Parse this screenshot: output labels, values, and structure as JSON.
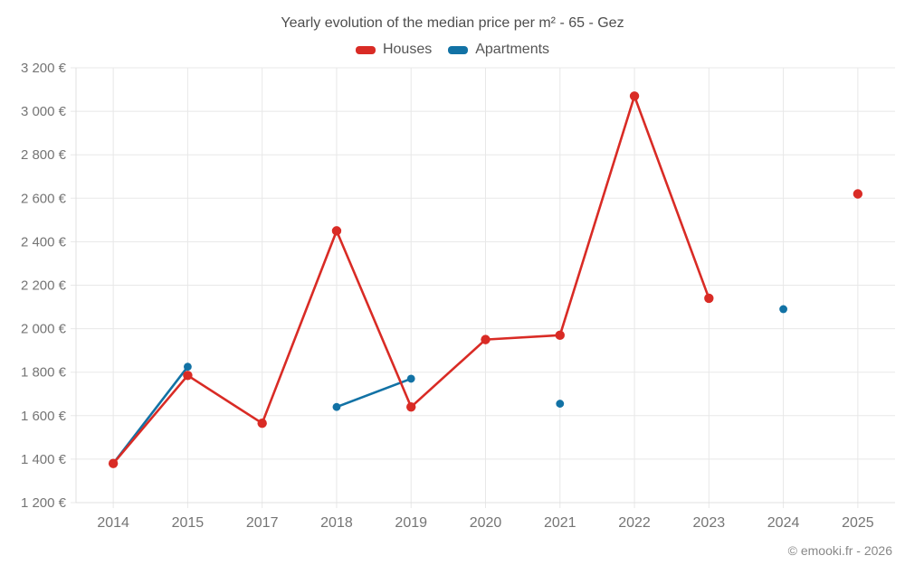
{
  "footer": {
    "credit": "© emooki.fr - 2026"
  },
  "colors": {
    "houses": "#d92b25",
    "apartments": "#1272a5",
    "grid": "#e8e8e8",
    "axis_line": "#e0e0e0",
    "tick_text": "#757575",
    "title_text": "#4d4d4d",
    "legend_text": "#555555",
    "credit_text": "#888888",
    "background": "#ffffff"
  },
  "chart_data": {
    "type": "line",
    "title": "Yearly evolution of the median price per m² - 65 - Gez",
    "categories": [
      "2014",
      "2015",
      "2017",
      "2018",
      "2019",
      "2020",
      "2021",
      "2022",
      "2023",
      "2024",
      "2025"
    ],
    "series": [
      {
        "name": "Houses",
        "color": "#d92b25",
        "values": [
          1380,
          1785,
          1565,
          2450,
          1640,
          1950,
          1970,
          3070,
          2140,
          null,
          2620
        ]
      },
      {
        "name": "Apartments",
        "color": "#1272a5",
        "values": [
          1380,
          1825,
          null,
          1640,
          1770,
          null,
          1655,
          null,
          null,
          2090,
          null
        ]
      }
    ],
    "xlabel": "",
    "ylabel": "",
    "ylim": [
      1200,
      3200
    ],
    "y_tick_step": 200,
    "y_tick_labels": [
      "1 200 €",
      "1 400 €",
      "1 600 €",
      "1 800 €",
      "2 000 €",
      "2 200 €",
      "2 400 €",
      "2 600 €",
      "2 800 €",
      "3 000 €",
      "3 200 €"
    ],
    "grid": true,
    "legend_position": "top",
    "span_gaps": false
  }
}
